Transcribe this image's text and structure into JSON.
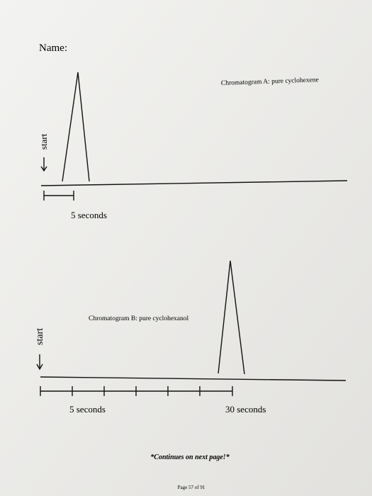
{
  "header": {
    "name_label": "Name:"
  },
  "chromatogram_a": {
    "label": "Chromatogram A: pure cyclohexene",
    "start": "start",
    "scale_label": "5 seconds"
  },
  "chromatogram_b": {
    "label": "Chromatogram B: pure cyclohexanol",
    "start": "start",
    "scale_label_5": "5 seconds",
    "scale_label_30": "30 seconds"
  },
  "footer": {
    "note": "*Continues on next page!*",
    "page": "Page 57 of 91"
  }
}
